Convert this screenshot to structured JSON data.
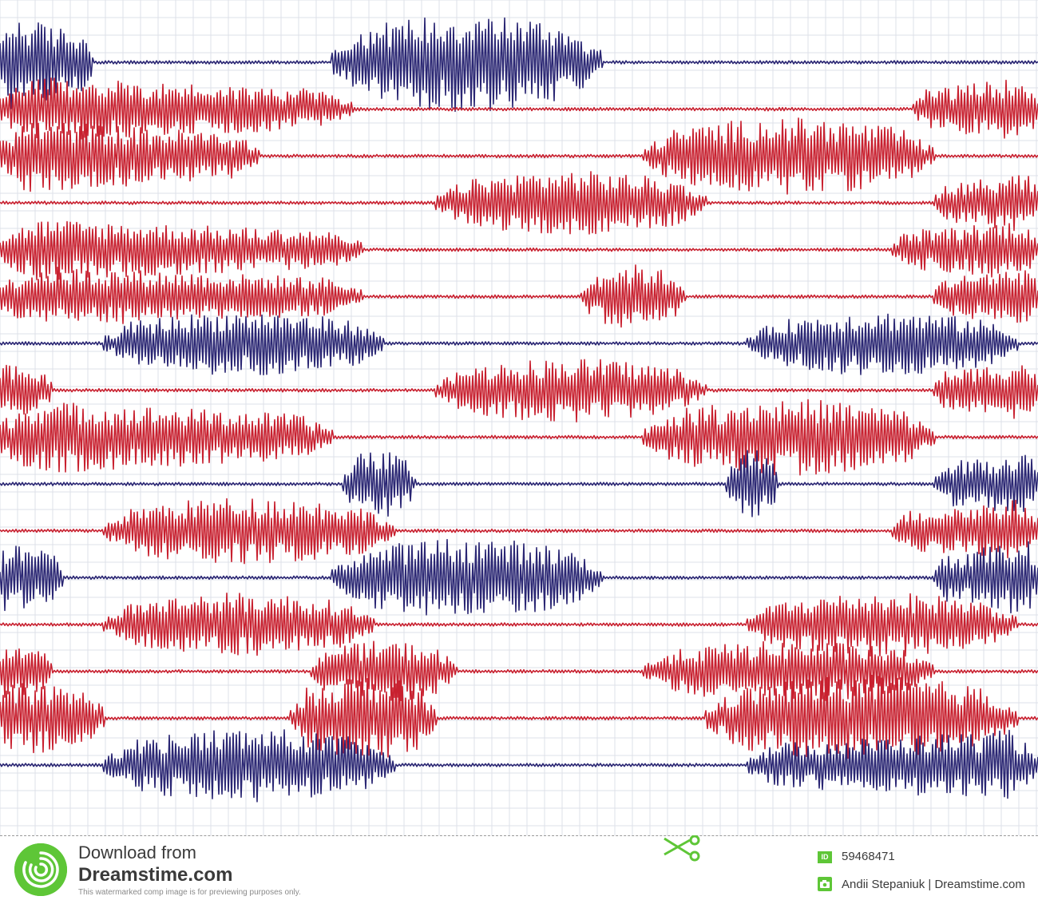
{
  "colors": {
    "navy": "#2a2673",
    "red": "#c8202f",
    "grid": "#dde1e8",
    "background": "#ffffff",
    "brand_green": "#5ec637",
    "footer_text": "#3a3a3a"
  },
  "artwork": {
    "subject": "stacked seismogram-style waveform traces on grid paper",
    "traces": [
      {
        "color": "navy",
        "loud": [
          [
            0.0,
            0.09
          ],
          [
            0.32,
            0.58
          ]
        ],
        "max": 62
      },
      {
        "color": "red",
        "loud": [
          [
            0.0,
            0.34
          ],
          [
            0.88,
            1.0
          ]
        ],
        "max": 42
      },
      {
        "color": "red",
        "loud": [
          [
            0.0,
            0.25
          ],
          [
            0.62,
            0.9
          ]
        ],
        "max": 48
      },
      {
        "color": "red",
        "loud": [
          [
            0.42,
            0.68
          ],
          [
            0.9,
            1.0
          ]
        ],
        "max": 40
      },
      {
        "color": "red",
        "loud": [
          [
            0.0,
            0.35
          ],
          [
            0.86,
            1.0
          ]
        ],
        "max": 40
      },
      {
        "color": "red",
        "loud": [
          [
            0.0,
            0.35
          ],
          [
            0.56,
            0.66
          ],
          [
            0.9,
            1.0
          ]
        ],
        "max": 40
      },
      {
        "color": "navy",
        "loud": [
          [
            0.1,
            0.37
          ],
          [
            0.72,
            0.98
          ]
        ],
        "max": 40
      },
      {
        "color": "red",
        "loud": [
          [
            0.0,
            0.05
          ],
          [
            0.42,
            0.68
          ],
          [
            0.9,
            1.0
          ]
        ],
        "max": 40
      },
      {
        "color": "red",
        "loud": [
          [
            0.0,
            0.32
          ],
          [
            0.62,
            0.9
          ]
        ],
        "max": 48
      },
      {
        "color": "navy",
        "loud": [
          [
            0.33,
            0.4
          ],
          [
            0.7,
            0.75
          ],
          [
            0.9,
            1.0
          ]
        ],
        "max": 44
      },
      {
        "color": "red",
        "loud": [
          [
            0.1,
            0.38
          ],
          [
            0.86,
            1.0
          ]
        ],
        "max": 42
      },
      {
        "color": "navy",
        "loud": [
          [
            0.0,
            0.06
          ],
          [
            0.32,
            0.58
          ],
          [
            0.9,
            1.0
          ]
        ],
        "max": 50
      },
      {
        "color": "red",
        "loud": [
          [
            0.1,
            0.36
          ],
          [
            0.72,
            0.98
          ]
        ],
        "max": 40
      },
      {
        "color": "red",
        "loud": [
          [
            0.0,
            0.05
          ],
          [
            0.3,
            0.44
          ],
          [
            0.62,
            0.9
          ]
        ],
        "max": 38
      },
      {
        "color": "red",
        "loud": [
          [
            0.0,
            0.1
          ],
          [
            0.28,
            0.42
          ],
          [
            0.68,
            0.98
          ]
        ],
        "max": 54
      },
      {
        "color": "navy",
        "loud": [
          [
            0.1,
            0.38
          ],
          [
            0.72,
            1.0
          ]
        ],
        "max": 46
      }
    ]
  },
  "footer": {
    "download_line1": "Download from",
    "download_line2": "Dreamstime.com",
    "note": "This watermarked comp image is for previewing purposes only.",
    "id_label": "ID",
    "id_value": "59468471",
    "author": "Andii Stepaniuk | Dreamstime.com",
    "logo_icon": "dreamstime-swirl-icon",
    "scissors_icon": "scissors-icon",
    "author_icon": "camera-icon"
  }
}
